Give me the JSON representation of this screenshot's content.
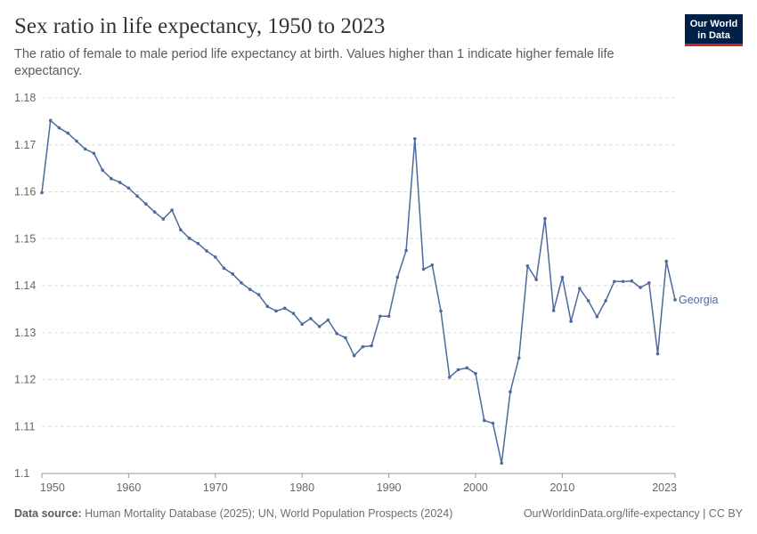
{
  "header": {
    "title": "Sex ratio in life expectancy, 1950 to 2023",
    "subtitle": "The ratio of female to male period life expectancy at birth. Values higher than 1 indicate higher female life expectancy."
  },
  "logo": {
    "line1": "Our World",
    "line2": "in Data"
  },
  "footer": {
    "source_label": "Data source:",
    "source_text": "Human Mortality Database (2025); UN, World Population Prospects (2024)",
    "url_text": "OurWorldinData.org/life-expectancy | CC BY"
  },
  "colors": {
    "series": "#4c6a9c",
    "grid": "#dddddd",
    "axis_text": "#666666",
    "title": "#333333",
    "logo_bg": "#002147",
    "logo_accent": "#ce261e"
  },
  "chart_data": {
    "type": "line",
    "title": "Sex ratio in life expectancy, 1950 to 2023",
    "xlabel": "",
    "ylabel": "",
    "xlim": [
      1950,
      2023
    ],
    "ylim": [
      1.1,
      1.18
    ],
    "x_ticks": [
      1950,
      1960,
      1970,
      1980,
      1990,
      2000,
      2010,
      2023
    ],
    "y_ticks": [
      1.1,
      1.11,
      1.12,
      1.13,
      1.14,
      1.15,
      1.16,
      1.17,
      1.18
    ],
    "y_tick_labels": [
      "1.1",
      "1.11",
      "1.12",
      "1.13",
      "1.14",
      "1.15",
      "1.16",
      "1.17",
      "1.18"
    ],
    "grid": true,
    "legend": "inline-end",
    "series": [
      {
        "name": "Georgia",
        "x": [
          1950,
          1951,
          1952,
          1953,
          1954,
          1955,
          1956,
          1957,
          1958,
          1959,
          1960,
          1961,
          1962,
          1963,
          1964,
          1965,
          1966,
          1967,
          1968,
          1969,
          1970,
          1971,
          1972,
          1973,
          1974,
          1975,
          1976,
          1977,
          1978,
          1979,
          1980,
          1981,
          1982,
          1983,
          1984,
          1985,
          1986,
          1987,
          1988,
          1989,
          1990,
          1991,
          1992,
          1993,
          1994,
          1995,
          1996,
          1997,
          1998,
          1999,
          2000,
          2001,
          2002,
          2003,
          2004,
          2005,
          2006,
          2007,
          2008,
          2009,
          2010,
          2011,
          2012,
          2013,
          2014,
          2015,
          2016,
          2017,
          2018,
          2019,
          2020,
          2021,
          2022,
          2023
        ],
        "values": [
          1.1598,
          1.1752,
          1.1736,
          1.1725,
          1.1708,
          1.1691,
          1.1682,
          1.1646,
          1.1628,
          1.162,
          1.1608,
          1.1591,
          1.1574,
          1.1557,
          1.1542,
          1.1561,
          1.1519,
          1.1501,
          1.149,
          1.1474,
          1.1461,
          1.1437,
          1.1425,
          1.1406,
          1.1392,
          1.1381,
          1.1356,
          1.1346,
          1.1352,
          1.1341,
          1.1318,
          1.133,
          1.1313,
          1.1327,
          1.1298,
          1.1289,
          1.1251,
          1.127,
          1.1272,
          1.1335,
          1.1335,
          1.1418,
          1.1475,
          1.1713,
          1.1435,
          1.1444,
          1.1346,
          1.1205,
          1.1221,
          1.1225,
          1.1213,
          1.1113,
          1.1107,
          1.1022,
          1.1174,
          1.1246,
          1.1442,
          1.1413,
          1.1543,
          1.1347,
          1.1418,
          1.1324,
          1.1394,
          1.1368,
          1.1334,
          1.1368,
          1.1409,
          1.1409,
          1.141,
          1.1396,
          1.1406,
          1.1255,
          1.1452,
          1.137
        ]
      }
    ]
  }
}
